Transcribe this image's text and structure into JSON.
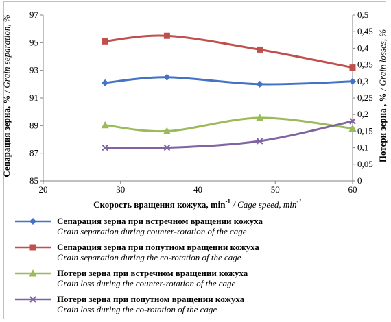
{
  "chart_data": {
    "type": "line",
    "x_axis": {
      "label_ru": "Скорость вращения кожуха, min",
      "label_ru_sup": "-1",
      "label_en": " / Cage speed, min",
      "label_en_sup": "-1",
      "ticks": [
        "20",
        "30",
        "40",
        "50",
        "60"
      ],
      "range": [
        20,
        60
      ]
    },
    "y_left": {
      "label_ru": "Сепарация зерна, %",
      "label_en": " / Grain separation, %",
      "ticks": [
        "85",
        "87",
        "89",
        "91",
        "93",
        "95",
        "97"
      ],
      "range": [
        85,
        97
      ]
    },
    "y_right": {
      "label_ru": "Потери зерна , %",
      "label_en": " / Grain losses, %",
      "ticks": [
        "0",
        "0,05",
        "0,1",
        "0,15",
        "0,2",
        "0,25",
        "0,3",
        "0,35",
        "0,4",
        "0,45",
        "0,5"
      ],
      "range": [
        0,
        0.5
      ]
    },
    "series": [
      {
        "name_ru": "Сепарация зерна при встречном вращении кожуха",
        "name_en": "Grain separation during counter-rotation of the cage",
        "axis": "left",
        "color": "#4472c4",
        "marker": "diamond",
        "x": [
          28,
          36,
          48,
          60
        ],
        "y": [
          92.1,
          92.5,
          92.0,
          92.2
        ]
      },
      {
        "name_ru": "Сепарация зерна при попутном вращении кожуха",
        "name_en": "Grain separation during the co-rotation of the cage",
        "axis": "left",
        "color": "#c0504d",
        "marker": "square",
        "x": [
          28,
          36,
          48,
          60
        ],
        "y": [
          95.1,
          95.5,
          94.5,
          93.2
        ]
      },
      {
        "name_ru": "Потери зерна при встречном вращении кожуха",
        "name_en": "Grain loss during the counter-rotation of the cage",
        "axis": "right",
        "color": "#9bbb59",
        "marker": "triangle",
        "x": [
          28,
          36,
          48,
          60
        ],
        "y": [
          0.168,
          0.15,
          0.19,
          0.158
        ]
      },
      {
        "name_ru": "Потери зерна при попутном вращении кожуха",
        "name_en": "Grain loss during the co-rotation of the cage",
        "axis": "right",
        "color": "#8064a2",
        "marker": "x",
        "x": [
          28,
          36,
          48,
          60
        ],
        "y": [
          0.1,
          0.1,
          0.12,
          0.18
        ]
      }
    ],
    "grid": false,
    "legend_position": "bottom"
  }
}
